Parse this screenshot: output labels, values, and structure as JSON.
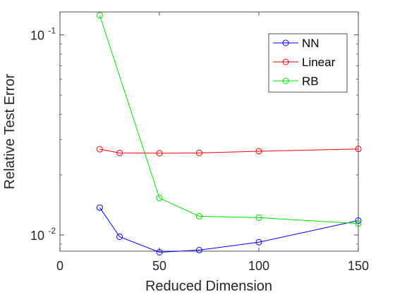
{
  "chart_data": {
    "type": "line",
    "title": "",
    "xlabel": "Reduced Dimension",
    "ylabel": "Relative Test Error",
    "xlim": [
      0,
      150
    ],
    "ylim": [
      0.0083,
      0.13
    ],
    "yscale": "log",
    "xticks": [
      0,
      50,
      100,
      150
    ],
    "xtick_labels": [
      "0",
      "50",
      "100",
      "150"
    ],
    "yticks": [
      0.01,
      0.1
    ],
    "ytick_labels": [
      {
        "base": "10",
        "exp": "-2"
      },
      {
        "base": "10",
        "exp": "-1"
      }
    ],
    "grid": false,
    "legend_position": "top-right",
    "series": [
      {
        "name": "NN",
        "color": "#0000ff",
        "marker": "circle",
        "x": [
          20,
          30,
          50,
          70,
          100,
          150
        ],
        "y": [
          0.0137,
          0.0098,
          0.0082,
          0.0084,
          0.0092,
          0.0118
        ]
      },
      {
        "name": "Linear",
        "color": "#ff0000",
        "marker": "circle",
        "x": [
          20,
          30,
          50,
          70,
          100,
          150
        ],
        "y": [
          0.0268,
          0.0257,
          0.0256,
          0.0257,
          0.0262,
          0.0269
        ]
      },
      {
        "name": "RB",
        "color": "#00e000",
        "marker": "circle",
        "x": [
          20,
          50,
          70,
          100,
          150
        ],
        "y": [
          0.125,
          0.0153,
          0.0124,
          0.0122,
          0.0114
        ]
      }
    ]
  }
}
